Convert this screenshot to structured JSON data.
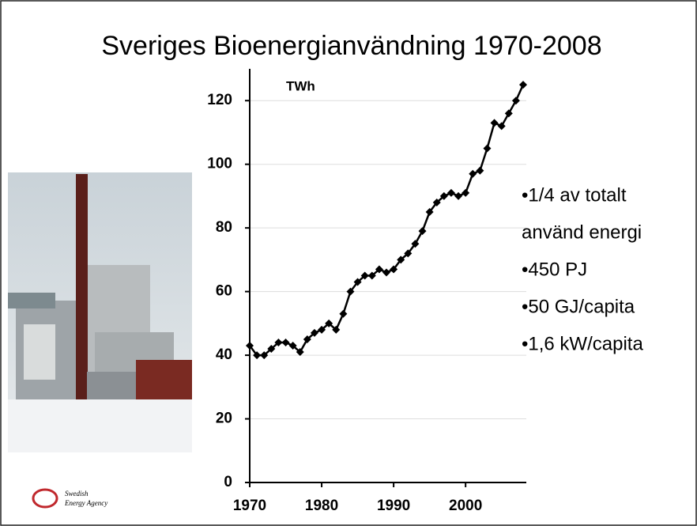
{
  "chart_data": {
    "type": "line",
    "title": "Sveriges Bioenergianvändning 1970-2008",
    "ylabel": "TWh",
    "x": [
      1970,
      1971,
      1972,
      1973,
      1974,
      1975,
      1976,
      1977,
      1978,
      1979,
      1980,
      1981,
      1982,
      1983,
      1984,
      1985,
      1986,
      1987,
      1988,
      1989,
      1990,
      1991,
      1992,
      1993,
      1994,
      1995,
      1996,
      1997,
      1998,
      1999,
      2000,
      2001,
      2002,
      2003,
      2004,
      2005,
      2006,
      2007,
      2008
    ],
    "values": [
      43,
      40,
      40,
      42,
      44,
      44,
      43,
      41,
      45,
      47,
      48,
      50,
      48,
      53,
      60,
      63,
      65,
      65,
      67,
      66,
      67,
      70,
      72,
      75,
      79,
      85,
      88,
      90,
      91,
      90,
      91,
      97,
      98,
      105,
      113,
      112,
      116,
      120,
      125
    ],
    "color": "#000000",
    "xlim": [
      1970,
      2008
    ],
    "xticks": [
      1970,
      1980,
      1990,
      2000
    ],
    "ylim": [
      0,
      130
    ],
    "yticks": [
      0,
      20,
      40,
      60,
      80,
      100,
      120
    ],
    "grid": true,
    "annotations": [
      "•1/4 av totalt",
      "använd energi",
      "•450  PJ",
      "•50 GJ/capita",
      "•1,6 kW/capita"
    ]
  },
  "logo": [
    "Swedish",
    "Energy Agency"
  ]
}
